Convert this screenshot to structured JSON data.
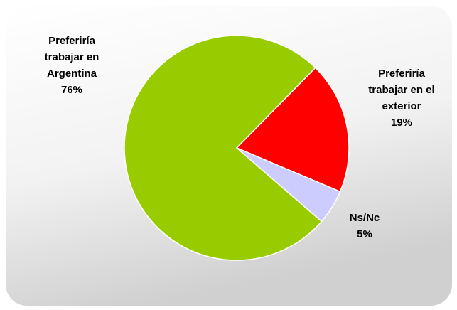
{
  "chart_data": {
    "type": "pie",
    "categories": [
      "Preferiría trabajar en el exterior",
      "Ns/Nc",
      "Preferiría trabajar en Argentina"
    ],
    "values": [
      19,
      5,
      76
    ],
    "value_labels": [
      "19%",
      "5%",
      "76%"
    ],
    "colors": [
      "#ff0000",
      "#ccccff",
      "#99cc00"
    ]
  }
}
